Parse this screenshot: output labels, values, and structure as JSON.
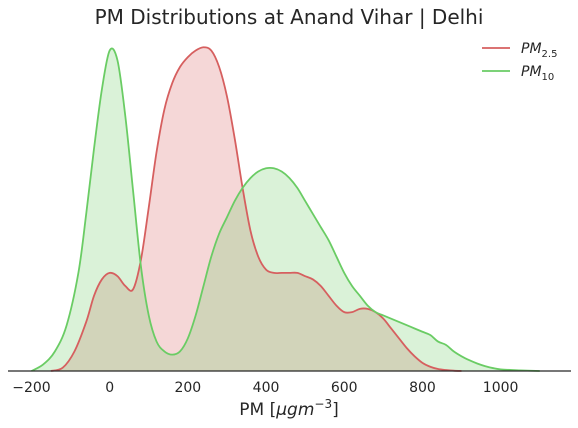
{
  "chart_data": {
    "type": "area",
    "title": "PM Distributions at Anand Vihar | Delhi",
    "xlabel_main": "PM [",
    "xlabel_unit": "μgm",
    "xlabel_exp": "−3",
    "xlabel_end": "]",
    "ylabel": "",
    "xlim": [
      -260,
      1180
    ],
    "ylim": [
      0,
      1.0
    ],
    "xticks": [
      -200,
      0,
      200,
      400,
      600,
      800,
      1000
    ],
    "xtick_labels": [
      "−200",
      "0",
      "200",
      "400",
      "600",
      "800",
      "1000"
    ],
    "grid": false,
    "legend": "top-right",
    "series": [
      {
        "name": "PM2.5",
        "name_base": "PM",
        "name_sub": "2.5",
        "color": "#d65f5f",
        "fill": "#f5d4d4",
        "x": [
          -150,
          -120,
          -90,
          -60,
          -40,
          -20,
          0,
          20,
          40,
          60,
          80,
          100,
          120,
          140,
          160,
          180,
          200,
          220,
          240,
          260,
          280,
          300,
          320,
          340,
          360,
          380,
          400,
          420,
          440,
          460,
          480,
          500,
          520,
          540,
          560,
          580,
          600,
          620,
          640,
          660,
          680,
          700,
          720,
          740,
          760,
          780,
          800,
          820,
          840,
          860,
          880,
          900
        ],
        "y": [
          0.0,
          0.01,
          0.06,
          0.15,
          0.23,
          0.28,
          0.3,
          0.29,
          0.26,
          0.25,
          0.34,
          0.5,
          0.67,
          0.8,
          0.88,
          0.93,
          0.96,
          0.98,
          0.99,
          0.98,
          0.93,
          0.84,
          0.71,
          0.56,
          0.43,
          0.35,
          0.31,
          0.3,
          0.3,
          0.3,
          0.3,
          0.29,
          0.28,
          0.26,
          0.23,
          0.2,
          0.18,
          0.18,
          0.19,
          0.19,
          0.18,
          0.16,
          0.13,
          0.1,
          0.07,
          0.045,
          0.025,
          0.013,
          0.006,
          0.003,
          0.001,
          0.0
        ]
      },
      {
        "name": "PM10",
        "name_base": "PM",
        "name_sub": "10",
        "color": "#6acc64",
        "fill": "#d9f2d8",
        "x": [
          -200,
          -170,
          -140,
          -110,
          -80,
          -60,
          -40,
          -20,
          0,
          20,
          40,
          60,
          80,
          100,
          120,
          140,
          160,
          180,
          200,
          220,
          240,
          260,
          280,
          300,
          320,
          340,
          360,
          380,
          400,
          420,
          440,
          460,
          480,
          500,
          520,
          540,
          560,
          580,
          600,
          620,
          640,
          660,
          680,
          700,
          720,
          740,
          760,
          780,
          800,
          820,
          840,
          860,
          880,
          900,
          920,
          940,
          960,
          980,
          1000,
          1050,
          1100
        ],
        "y": [
          0.0,
          0.02,
          0.06,
          0.14,
          0.3,
          0.48,
          0.68,
          0.86,
          0.98,
          0.95,
          0.78,
          0.55,
          0.32,
          0.17,
          0.09,
          0.06,
          0.05,
          0.06,
          0.1,
          0.17,
          0.26,
          0.35,
          0.42,
          0.47,
          0.52,
          0.56,
          0.59,
          0.61,
          0.62,
          0.62,
          0.61,
          0.59,
          0.56,
          0.52,
          0.48,
          0.44,
          0.4,
          0.35,
          0.3,
          0.26,
          0.23,
          0.2,
          0.18,
          0.17,
          0.16,
          0.15,
          0.14,
          0.13,
          0.12,
          0.11,
          0.09,
          0.08,
          0.06,
          0.045,
          0.033,
          0.023,
          0.015,
          0.009,
          0.005,
          0.002,
          0.0
        ]
      }
    ]
  }
}
